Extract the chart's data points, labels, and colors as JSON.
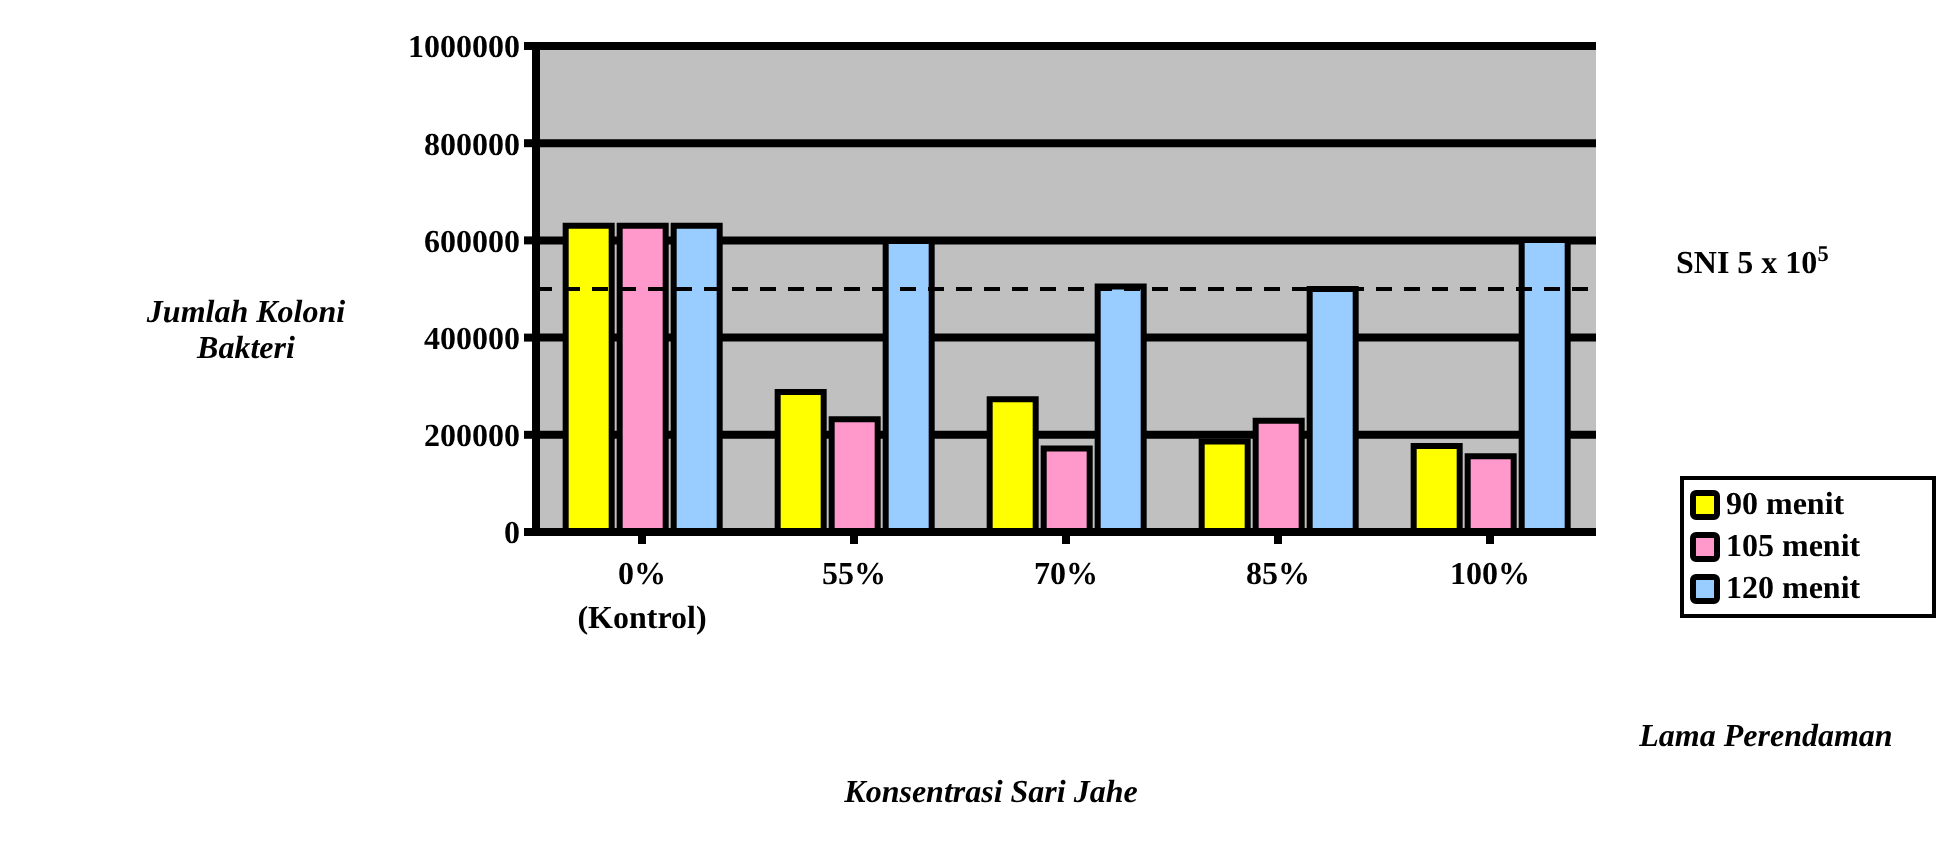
{
  "chart_data": {
    "type": "bar",
    "xlabel": "Konsentrasi Sari Jahe",
    "ylabel": "Jumlah Koloni Bakteri",
    "legend_title": "Lama Perendaman",
    "categories": [
      "0% (Kontrol)",
      "55%",
      "70%",
      "85%",
      "100%"
    ],
    "series": [
      {
        "name": "90 menit",
        "color": "#ffff00",
        "values": [
          630000,
          288000,
          273000,
          186000,
          177000
        ]
      },
      {
        "name": "105 menit",
        "color": "#ff99cc",
        "values": [
          630000,
          232000,
          172000,
          229000,
          156000
        ]
      },
      {
        "name": "120 menit",
        "color": "#99ccff",
        "values": [
          630000,
          599000,
          505000,
          500000,
          601000
        ]
      }
    ],
    "ylim": [
      0,
      1000000
    ],
    "yticks": [
      0,
      200000,
      400000,
      600000,
      800000,
      1000000
    ],
    "grid": "y",
    "legend": "right",
    "ref_lines": [
      {
        "axis": "y",
        "value": 500000,
        "label": "SNI 5 x 10$^{5}$",
        "line_style": "dashed",
        "color": "#000000"
      }
    ]
  }
}
